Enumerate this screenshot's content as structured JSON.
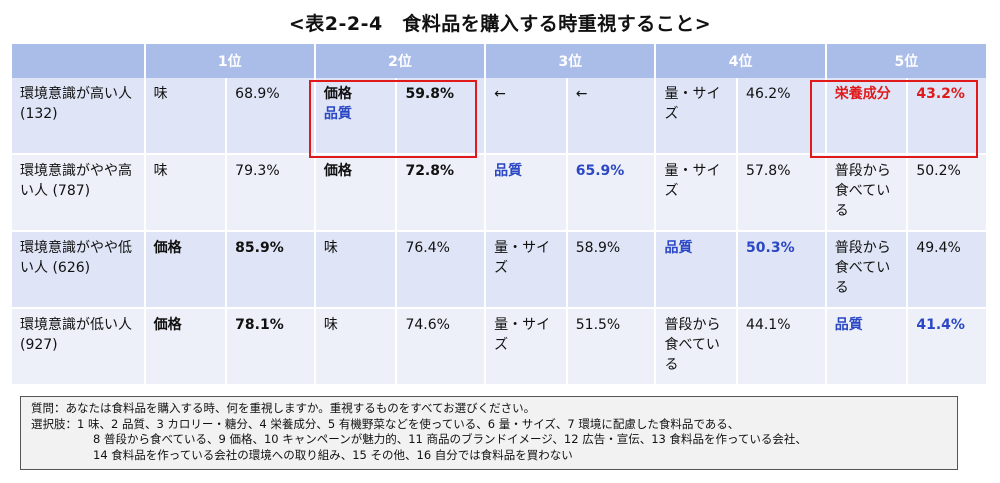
{
  "title": "<表2-2-4　食料品を購入する時重視すること>",
  "headers": [
    "1位",
    "2位",
    "3位",
    "4位",
    "5位"
  ],
  "rows": [
    {
      "name": "環境意識が高い人 (132)",
      "cells": [
        {
          "item": "味",
          "pct": "68.9%"
        },
        {
          "item": "価格",
          "item2": "品質",
          "pct": "59.8%"
        },
        {
          "item": "←",
          "pct": "←"
        },
        {
          "item": "量・サイズ",
          "pct": "46.2%"
        },
        {
          "item": "栄養成分",
          "pct": "43.2%"
        }
      ]
    },
    {
      "name": "環境意識がやや高い人 (787)",
      "cells": [
        {
          "item": "味",
          "pct": "79.3%"
        },
        {
          "item": "価格",
          "pct": "72.8%"
        },
        {
          "item": "品質",
          "pct": "65.9%"
        },
        {
          "item": "量・サイズ",
          "pct": "57.8%"
        },
        {
          "item": "普段から食べている",
          "pct": "50.2%"
        }
      ]
    },
    {
      "name": "環境意識がやや低い人 (626)",
      "cells": [
        {
          "item": "価格",
          "pct": "85.9%"
        },
        {
          "item": "味",
          "pct": "76.4%"
        },
        {
          "item": "量・サイズ",
          "pct": "58.9%"
        },
        {
          "item": "品質",
          "pct": "50.3%"
        },
        {
          "item": "普段から食べている",
          "pct": "49.4%"
        }
      ]
    },
    {
      "name": "環境意識が低い人 (927)",
      "cells": [
        {
          "item": "価格",
          "pct": "78.1%"
        },
        {
          "item": "味",
          "pct": "74.6%"
        },
        {
          "item": "量・サイズ",
          "pct": "51.5%"
        },
        {
          "item": "普段から食べている",
          "pct": "44.1%"
        },
        {
          "item": "品質",
          "pct": "41.4%"
        }
      ]
    }
  ],
  "note": {
    "question": "質問：あなたは食料品を購入する時、何を重視しますか。重視するものをすべてお選びください。",
    "choices_1": "選択肢：1 味、2 品質、3 カロリー・糖分、4 栄養成分、5 有機野菜などを使っている、6 量・サイズ、7 環境に配慮した食料品である、",
    "choices_2": "8 普段から食べている、9 価格、10 キャンペーンが魅力的、11 商品のブランドイメージ、12 広告・宣伝、13 食料品を作っている会社、",
    "choices_3": "14 食料品を作っている会社の環境への取り組み、15 その他、16 自分では食料品を買わない"
  },
  "colors": {
    "header_bg": "#a9bde8",
    "row_dark": "#dfe5f6",
    "row_light": "#edf0f8",
    "blue_text": "#2b47c4",
    "red_highlight": "#e01a1a"
  }
}
